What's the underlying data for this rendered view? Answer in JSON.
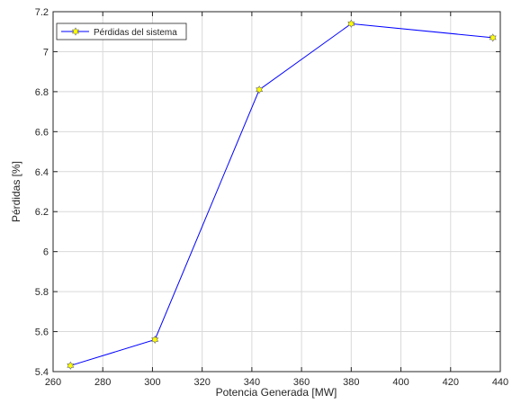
{
  "chart_data": {
    "type": "line",
    "xlabel": "Potencia Generada [MW]",
    "ylabel": "Pérdidas [%]",
    "xlim": [
      260,
      440
    ],
    "ylim": [
      5.4,
      7.2
    ],
    "xticks": [
      "260",
      "280",
      "300",
      "320",
      "340",
      "360",
      "380",
      "400",
      "420",
      "440"
    ],
    "yticks": [
      "5.4",
      "5.6",
      "5.8",
      "6",
      "6.2",
      "6.4",
      "6.6",
      "6.8",
      "7",
      "7.2"
    ],
    "grid": true,
    "legend_position": "top-left",
    "series": [
      {
        "name": "Pérdidas del sistema",
        "color": "#0000ff",
        "marker": "hexagram",
        "marker_fill": "#ffff00",
        "x": [
          267,
          301,
          343,
          380,
          437
        ],
        "y": [
          5.43,
          5.56,
          6.81,
          7.14,
          7.07
        ]
      }
    ]
  }
}
